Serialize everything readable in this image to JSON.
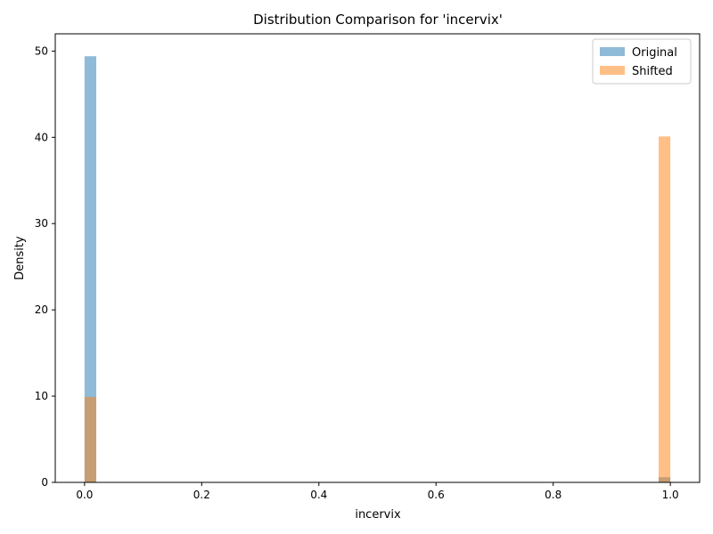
{
  "chart_data": {
    "type": "bar",
    "title": "Distribution Comparison for 'incervix'",
    "xlabel": "incervix",
    "ylabel": "Density",
    "xlim": [
      -0.05,
      1.05
    ],
    "ylim": [
      0,
      52
    ],
    "xticks": [
      0.0,
      0.2,
      0.4,
      0.6,
      0.8,
      1.0
    ],
    "xtick_labels": [
      "0.0",
      "0.2",
      "0.4",
      "0.6",
      "0.8",
      "1.0"
    ],
    "yticks": [
      0,
      10,
      20,
      30,
      40,
      50
    ],
    "ytick_labels": [
      "0",
      "10",
      "20",
      "30",
      "40",
      "50"
    ],
    "bin_width": 0.02,
    "grid": false,
    "legend_position": "top-right",
    "series": [
      {
        "name": "Original",
        "color": "#1f77b4",
        "opacity": 0.5,
        "bins": [
          {
            "x0": 0.0,
            "x1": 0.02,
            "density": 49.4
          },
          {
            "x0": 0.98,
            "x1": 1.0,
            "density": 0.6
          }
        ]
      },
      {
        "name": "Shifted",
        "color": "#ff7f0e",
        "opacity": 0.5,
        "bins": [
          {
            "x0": 0.0,
            "x1": 0.02,
            "density": 9.9
          },
          {
            "x0": 0.98,
            "x1": 1.0,
            "density": 40.1
          }
        ]
      }
    ]
  }
}
